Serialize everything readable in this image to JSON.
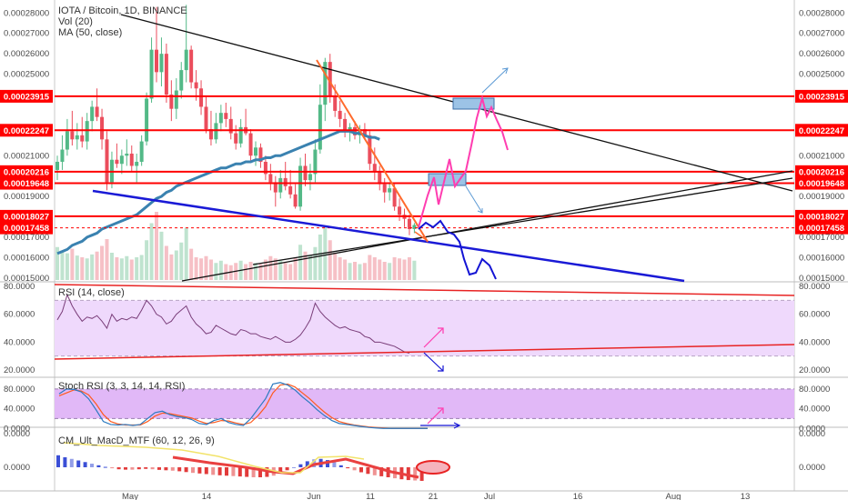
{
  "header": {
    "title": "IOTA / Bitcoin, 1D, BINANCE",
    "volume_label": "Vol (20)",
    "ma_label": "MA (50, close)"
  },
  "colors": {
    "bull": "#53b987",
    "bear": "#eb4d5c",
    "ma": "#3a82b0",
    "level": "#ff0000",
    "rsi": "#7a3e7a",
    "rsi_band": "#efd9fc",
    "stoch_band": "#e1b8f7",
    "stoch_k": "#2b7ac0",
    "stoch_d": "#ff5a1e",
    "trend_blue": "#1a1ad6",
    "trend_orange": "#ff6a2c",
    "projection_pink": "#ff3db0",
    "zone_fill": "#9cc3e6"
  },
  "chart_data": [
    {
      "type": "candlestick",
      "title": "IOTA / Bitcoin, 1D, BINANCE",
      "ylim": [
        0.000149,
        0.0002855
      ],
      "y_ticks": [
        "0.00015000",
        "0.00016000",
        "0.00017000",
        "0.00019000",
        "0.00021000",
        "0.00025000",
        "0.00026000",
        "0.00027000",
        "0.00028000"
      ],
      "x_ticks": [
        "May",
        "14",
        "Jun",
        "11",
        "21",
        "Jul",
        "16",
        "Aug",
        "13"
      ],
      "price_levels": [
        "0.00023915",
        "0.00022247",
        "0.00020216",
        "0.00019648",
        "0.00018027",
        "0.00017458"
      ],
      "ma_label": "MA (50, close)",
      "volume_label": "Vol (20)",
      "candles": [
        [
          0.000203,
          0.00021,
          0.000198,
          0.000207
        ],
        [
          0.000207,
          0.00022,
          0.000203,
          0.000213
        ],
        [
          0.000213,
          0.000228,
          0.00021,
          0.000222
        ],
        [
          0.000222,
          0.000232,
          0.000215,
          0.000218
        ],
        [
          0.000218,
          0.000226,
          0.000213,
          0.00022
        ],
        [
          0.00022,
          0.000229,
          0.000214,
          0.000217
        ],
        [
          0.000217,
          0.000231,
          0.000213,
          0.000227
        ],
        [
          0.000227,
          0.000237,
          0.000222,
          0.000234
        ],
        [
          0.000234,
          0.000243,
          0.000227,
          0.000229
        ],
        [
          0.000229,
          0.000233,
          0.000213,
          0.000218
        ],
        [
          0.000218,
          0.000222,
          0.000193,
          0.000197
        ],
        [
          0.000197,
          0.000212,
          0.000194,
          0.000208
        ],
        [
          0.000208,
          0.000216,
          0.000204,
          0.000206
        ],
        [
          0.000206,
          0.000213,
          0.000201,
          0.00021
        ],
        [
          0.00021,
          0.000218,
          0.000205,
          0.000211
        ],
        [
          0.000211,
          0.000215,
          0.000202,
          0.000205
        ],
        [
          0.000205,
          0.000211,
          0.000197,
          0.000207
        ],
        [
          0.000207,
          0.00022,
          0.000205,
          0.000217
        ],
        [
          0.000217,
          0.000241,
          0.000215,
          0.000238
        ],
        [
          0.000238,
          0.000268,
          0.000236,
          0.000262
        ],
        [
          0.000262,
          0.000283,
          0.000246,
          0.000251
        ],
        [
          0.000251,
          0.000268,
          0.000244,
          0.00026
        ],
        [
          0.00026,
          0.000265,
          0.000236,
          0.00024
        ],
        [
          0.00024,
          0.000247,
          0.000227,
          0.000233
        ],
        [
          0.000233,
          0.000248,
          0.000228,
          0.000242
        ],
        [
          0.000242,
          0.000256,
          0.000238,
          0.000252
        ],
        [
          0.000252,
          0.000284,
          0.000246,
          0.000262
        ],
        [
          0.000262,
          0.000264,
          0.000243,
          0.000246
        ],
        [
          0.000246,
          0.000252,
          0.000237,
          0.000243
        ],
        [
          0.000243,
          0.000247,
          0.00023,
          0.000234
        ],
        [
          0.000234,
          0.000239,
          0.000221,
          0.000223
        ],
        [
          0.000223,
          0.000232,
          0.000215,
          0.000218
        ],
        [
          0.000218,
          0.000231,
          0.000216,
          0.000226
        ],
        [
          0.000226,
          0.000235,
          0.000222,
          0.000231
        ],
        [
          0.000231,
          0.000236,
          0.000224,
          0.000228
        ],
        [
          0.000228,
          0.000234,
          0.000218,
          0.000221
        ],
        [
          0.000221,
          0.000225,
          0.000213,
          0.000216
        ],
        [
          0.000216,
          0.000228,
          0.000214,
          0.000224
        ],
        [
          0.000224,
          0.000233,
          0.00022,
          0.000221
        ],
        [
          0.000221,
          0.000223,
          0.000207,
          0.00021
        ],
        [
          0.00021,
          0.000217,
          0.000205,
          0.000214
        ],
        [
          0.000214,
          0.000216,
          0.000204,
          0.000207
        ],
        [
          0.000207,
          0.00021,
          0.000198,
          0.000201
        ],
        [
          0.000201,
          0.000206,
          0.000193,
          0.000197
        ],
        [
          0.000197,
          0.0002,
          0.000185,
          0.000192
        ],
        [
          0.000192,
          0.000203,
          0.000189,
          0.000199
        ],
        [
          0.000199,
          0.000207,
          0.000193,
          0.000195
        ],
        [
          0.000195,
          0.000203,
          0.000189,
          0.000191
        ],
        [
          0.000191,
          0.000196,
          0.000184,
          0.000185
        ],
        [
          0.000185,
          0.000209,
          0.000183,
          0.000205
        ],
        [
          0.000205,
          0.000211,
          0.000195,
          0.000198
        ],
        [
          0.000198,
          0.000206,
          0.000193,
          0.000201
        ],
        [
          0.000201,
          0.000218,
          0.000197,
          0.000213
        ],
        [
          0.000213,
          0.000245,
          0.000211,
          0.000235
        ],
        [
          0.000235,
          0.000258,
          0.000227,
          0.000256
        ],
        [
          0.000256,
          0.00026,
          0.000236,
          0.000239
        ],
        [
          0.000239,
          0.000245,
          0.000229,
          0.000232
        ],
        [
          0.000232,
          0.000237,
          0.000224,
          0.000228
        ],
        [
          0.000228,
          0.000231,
          0.000219,
          0.000222
        ],
        [
          0.000222,
          0.000226,
          0.000217,
          0.000224
        ],
        [
          0.000224,
          0.000227,
          0.000218,
          0.00022
        ],
        [
          0.00022,
          0.000225,
          0.000216,
          0.000223
        ],
        [
          0.000223,
          0.000226,
          0.000218,
          0.00022
        ],
        [
          0.00022,
          0.000222,
          0.000203,
          0.000206
        ],
        [
          0.000206,
          0.000214,
          0.000198,
          0.000202
        ],
        [
          0.000202,
          0.000205,
          0.000193,
          0.000196
        ],
        [
          0.000196,
          0.000199,
          0.000187,
          0.000192
        ],
        [
          0.000192,
          0.000197,
          0.000188,
          0.000194
        ],
        [
          0.000194,
          0.000196,
          0.000183,
          0.000185
        ],
        [
          0.000185,
          0.000189,
          0.000178,
          0.000181
        ],
        [
          0.000181,
          0.000184,
          0.000175,
          0.000179
        ],
        [
          0.000179,
          0.000181,
          0.000171,
          0.000174
        ],
        [
          0.000174,
          0.000177,
          0.000172,
          0.000176
        ]
      ],
      "volumes": [
        58,
        52,
        47,
        55,
        43,
        40,
        38,
        45,
        50,
        60,
        72,
        48,
        40,
        38,
        42,
        36,
        40,
        44,
        70,
        100,
        120,
        85,
        60,
        45,
        52,
        66,
        92,
        55,
        40,
        38,
        42,
        36,
        30,
        34,
        28,
        26,
        30,
        34,
        28,
        32,
        30,
        28,
        36,
        42,
        38,
        34,
        30,
        28,
        40,
        62,
        50,
        44,
        58,
        80,
        95,
        70,
        48,
        40,
        36,
        30,
        32,
        28,
        30,
        44,
        40,
        36,
        32,
        30,
        40,
        38,
        36,
        40,
        34
      ],
      "ma50": [
        0.000162,
        0.000163,
        0.000164,
        0.000166,
        0.000167,
        0.000168,
        0.00017,
        0.000171,
        0.000172,
        0.000174,
        0.000175,
        0.000176,
        0.000177,
        0.000178,
        0.000179,
        0.00018,
        0.000181,
        0.000183,
        0.000185,
        0.000187,
        0.000189,
        0.00019,
        0.000192,
        0.000193,
        0.000195,
        0.000196,
        0.000197,
        0.000198,
        0.000199,
        0.0002,
        0.000201,
        0.000202,
        0.000203,
        0.000204,
        0.000204,
        0.000205,
        0.000206,
        0.000206,
        0.000207,
        0.000207,
        0.000208,
        0.000208,
        0.000209,
        0.000209,
        0.00021,
        0.00021,
        0.000211,
        0.000212,
        0.000213,
        0.000214,
        0.000215,
        0.000216,
        0.000217,
        0.000218,
        0.000219,
        0.00022,
        0.000221,
        0.000222,
        0.000222,
        0.000222,
        0.000221,
        0.000221,
        0.00022,
        0.000219,
        0.000219,
        0.000218
      ]
    },
    {
      "type": "line",
      "title": "RSI (14, close)",
      "ylim": [
        18,
        82
      ],
      "y_ticks": [
        "80.0000",
        "60.0000",
        "40.0000",
        "20.0000"
      ],
      "band": [
        30,
        70
      ],
      "values": [
        56,
        62,
        74,
        66,
        60,
        55,
        58,
        57,
        59,
        55,
        50,
        60,
        55,
        57,
        56,
        58,
        57,
        63,
        70,
        66,
        60,
        58,
        53,
        55,
        60,
        63,
        66,
        58,
        53,
        50,
        46,
        47,
        52,
        50,
        48,
        46,
        45,
        49,
        48,
        46,
        46,
        44,
        43,
        42,
        44,
        42,
        40,
        40,
        42,
        45,
        50,
        56,
        68,
        62,
        58,
        55,
        52,
        50,
        51,
        49,
        48,
        47,
        44,
        43,
        40,
        40,
        39,
        38,
        37,
        35,
        33,
        32
      ]
    },
    {
      "type": "line",
      "title": "Stoch RSI (3, 3, 14, 14, RSI)",
      "ylim": [
        -5,
        100
      ],
      "y_ticks": [
        "80.0000",
        "40.0000",
        "0.0000"
      ],
      "band": [
        20,
        80
      ],
      "series": [
        {
          "name": "",
          "values": [
            70,
            80,
            79,
            74,
            60,
            38,
            14,
            8,
            7,
            8,
            6,
            8,
            20,
            32,
            35,
            28,
            24,
            22,
            18,
            10,
            8,
            16,
            20,
            12,
            8,
            6,
            20,
            40,
            60,
            90,
            93,
            88,
            78,
            64,
            52,
            38,
            26,
            16,
            10,
            8,
            6,
            4,
            2,
            1,
            0,
            0,
            0,
            0,
            0,
            0,
            0
          ]
        },
        {
          "name": "",
          "values": [
            66,
            72,
            78,
            76,
            68,
            50,
            28,
            14,
            9,
            7,
            7,
            7,
            14,
            25,
            31,
            30,
            27,
            24,
            21,
            15,
            10,
            12,
            16,
            15,
            11,
            8,
            12,
            26,
            44,
            72,
            88,
            90,
            84,
            72,
            60,
            46,
            33,
            22,
            14,
            10,
            7,
            5,
            3,
            2,
            1,
            0,
            0,
            0,
            0,
            0,
            0
          ]
        }
      ]
    },
    {
      "type": "bar",
      "title": "CM_Ult_MacD_MTF (60, 12, 26, 9)",
      "ylim": [
        -1.2,
        1.0
      ],
      "y_ticks": [
        "0.0000",
        "0.0000"
      ],
      "values": [
        0.6,
        0.5,
        0.42,
        0.34,
        0.26,
        0.18,
        0.1,
        0.02,
        -0.05,
        -0.1,
        -0.12,
        -0.12,
        -0.1,
        -0.08,
        -0.1,
        -0.13,
        -0.15,
        -0.17,
        -0.2,
        -0.24,
        -0.28,
        -0.31,
        -0.34,
        -0.38,
        -0.4,
        -0.42,
        -0.44,
        -0.46,
        -0.48,
        -0.5,
        -0.5,
        -0.48,
        -0.42,
        -0.3,
        -0.15,
        0.0,
        0.15,
        0.3,
        0.4,
        0.42,
        0.36,
        0.25,
        0.1,
        -0.05,
        -0.15,
        -0.25,
        -0.33,
        -0.4,
        -0.45,
        -0.5,
        -0.55,
        -0.6,
        -0.64,
        -0.66,
        -0.68
      ]
    }
  ]
}
